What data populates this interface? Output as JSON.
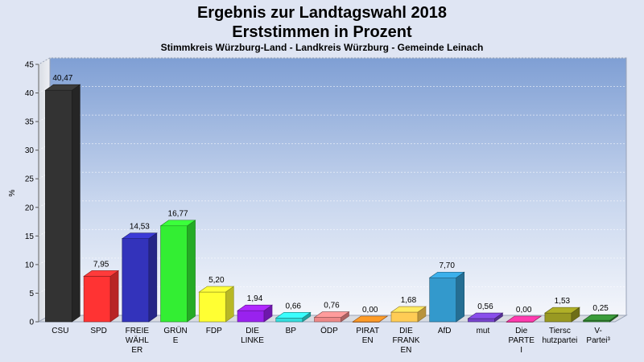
{
  "chart_data": {
    "type": "bar",
    "title_lines": [
      "Ergebnis zur Landtagswahl 2018",
      "Erststimmen in Prozent"
    ],
    "subtitle": "Stimmkreis Würzburg-Land - Landkreis Würzburg - Gemeinde Leinach",
    "ylabel": "%",
    "xlabel": "",
    "ylim": [
      0,
      45
    ],
    "yticks": [
      0,
      5,
      10,
      15,
      20,
      25,
      30,
      35,
      40,
      45
    ],
    "grid": true,
    "categories": [
      [
        "CSU"
      ],
      [
        "SPD"
      ],
      [
        "FREIE",
        "WÄHL",
        "ER"
      ],
      [
        "GRÜN",
        "E"
      ],
      [
        "FDP"
      ],
      [
        "DIE",
        "LINKE"
      ],
      [
        "BP"
      ],
      [
        "ÖDP"
      ],
      [
        "PIRAT",
        "EN"
      ],
      [
        "DIE",
        "FRANK",
        "EN"
      ],
      [
        "AfD"
      ],
      [
        "mut"
      ],
      [
        "Die",
        "PARTE",
        "I"
      ],
      [
        "Tiersc",
        "hutzpartei"
      ],
      [
        "V-",
        "Partei³"
      ]
    ],
    "values": [
      40.47,
      7.95,
      14.53,
      16.77,
      5.2,
      1.94,
      0.66,
      0.76,
      0.0,
      1.68,
      7.7,
      0.56,
      0.0,
      1.53,
      0.25
    ],
    "value_labels": [
      "40,47",
      "7,95",
      "14,53",
      "16,77",
      "5,20",
      "1,94",
      "0,66",
      "0,76",
      "0,00",
      "1,68",
      "7,70",
      "0,56",
      "0,00",
      "1,53",
      "0,25"
    ],
    "colors": [
      "#333333",
      "#ff3333",
      "#3333bb",
      "#33ee33",
      "#ffff33",
      "#9922ee",
      "#33dddd",
      "#ee8888",
      "#ff8822",
      "#ffcc55",
      "#3399cc",
      "#7744cc",
      "#ff3399",
      "#999922",
      "#338833"
    ]
  }
}
